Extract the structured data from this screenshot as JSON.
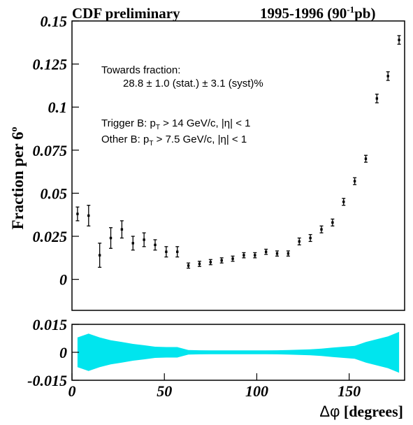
{
  "header": {
    "left": "CDF preliminary",
    "right_main": "1995-1996 (90",
    "right_sup": "-1",
    "right_end": "pb)"
  },
  "ylabel": {
    "main": "Fraction per 6",
    "sup": "o"
  },
  "xlabel": {
    "delta": "Δφ",
    "rest": " [degrees]"
  },
  "annotations": {
    "towards_title": "Towards fraction:",
    "towards_value": "28.8 ± 1.0 (stat.) ± 3.1 (syst)%",
    "trigger": {
      "pre": "Trigger B: p",
      "sub": "T",
      "post": " > 14 GeV/c, |η| < 1"
    },
    "other": {
      "pre": "Other B: p",
      "sub": "T",
      "post": " > 7.5 GeV/c, |η| < 1"
    }
  },
  "chart_data": [
    {
      "type": "scatter",
      "panel": "main",
      "xlim": [
        0,
        180
      ],
      "ylim": [
        -0.018,
        0.15
      ],
      "yticks": [
        0,
        0.025,
        0.05,
        0.075,
        0.1,
        0.125,
        0.15
      ],
      "ytick_labels": [
        "0",
        "0.025",
        "0.05",
        "0.075",
        "0.1",
        "0.125",
        "0.15"
      ],
      "x": [
        3,
        9,
        15,
        21,
        27,
        33,
        39,
        45,
        51,
        57,
        63,
        69,
        75,
        81,
        87,
        93,
        99,
        105,
        111,
        117,
        123,
        129,
        135,
        141,
        147,
        153,
        159,
        165,
        171,
        177
      ],
      "y": [
        0.038,
        0.037,
        0.014,
        0.024,
        0.029,
        0.021,
        0.023,
        0.02,
        0.016,
        0.016,
        0.008,
        0.009,
        0.01,
        0.011,
        0.012,
        0.014,
        0.014,
        0.016,
        0.015,
        0.015,
        0.022,
        0.024,
        0.029,
        0.033,
        0.045,
        0.057,
        0.07,
        0.105,
        0.118,
        0.139
      ],
      "err": [
        0.004,
        0.006,
        0.007,
        0.006,
        0.005,
        0.004,
        0.004,
        0.003,
        0.003,
        0.003,
        0.0015,
        0.0015,
        0.0015,
        0.0015,
        0.0015,
        0.0015,
        0.0015,
        0.0015,
        0.0015,
        0.0015,
        0.002,
        0.002,
        0.002,
        0.002,
        0.002,
        0.002,
        0.002,
        0.0025,
        0.0025,
        0.0025
      ]
    },
    {
      "type": "area",
      "panel": "residual",
      "color": "#00e5ee",
      "xlim": [
        0,
        180
      ],
      "ylim": [
        -0.015,
        0.015
      ],
      "yticks": [
        -0.015,
        0,
        0.015
      ],
      "ytick_labels": [
        "-0.015",
        "0",
        "0.015"
      ],
      "xticks": [
        0,
        50,
        100,
        150
      ],
      "xtick_labels": [
        "0",
        "50",
        "100",
        "150"
      ],
      "x": [
        3,
        9,
        15,
        21,
        27,
        33,
        39,
        45,
        51,
        57,
        63,
        69,
        75,
        81,
        87,
        93,
        99,
        105,
        111,
        117,
        123,
        129,
        135,
        141,
        147,
        153,
        159,
        165,
        171,
        177
      ],
      "y_upper": [
        0.008,
        0.01,
        0.008,
        0.0065,
        0.0055,
        0.0045,
        0.0038,
        0.003,
        0.0028,
        0.0028,
        0.0012,
        0.0011,
        0.001,
        0.001,
        0.001,
        0.001,
        0.001,
        0.001,
        0.0011,
        0.0012,
        0.0014,
        0.0016,
        0.002,
        0.0025,
        0.003,
        0.0035,
        0.0055,
        0.007,
        0.0085,
        0.011
      ],
      "y_lower": [
        -0.008,
        -0.01,
        -0.008,
        -0.0065,
        -0.0055,
        -0.0045,
        -0.0038,
        -0.003,
        -0.0028,
        -0.0028,
        -0.0012,
        -0.0011,
        -0.001,
        -0.001,
        -0.001,
        -0.001,
        -0.001,
        -0.001,
        -0.0011,
        -0.0012,
        -0.0014,
        -0.0016,
        -0.002,
        -0.0025,
        -0.003,
        -0.0035,
        -0.0055,
        -0.007,
        -0.0085,
        -0.011
      ]
    }
  ]
}
